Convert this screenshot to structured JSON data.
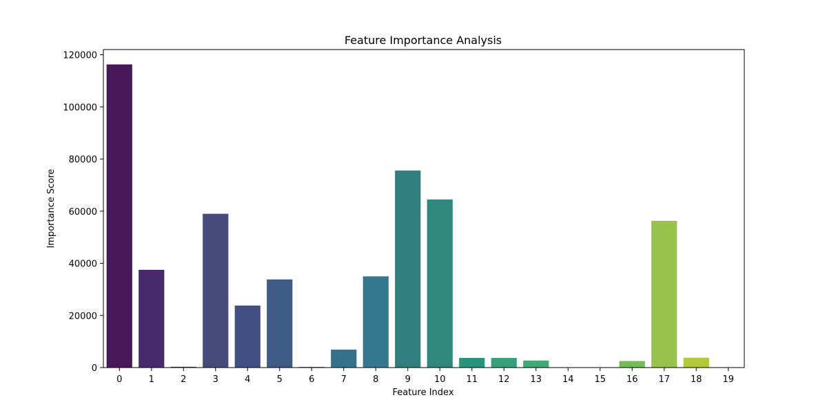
{
  "chart_data": {
    "type": "bar",
    "title": "Feature Importance Analysis",
    "xlabel": "Feature Index",
    "ylabel": "Importance Score",
    "categories": [
      "0",
      "1",
      "2",
      "3",
      "4",
      "5",
      "6",
      "7",
      "8",
      "9",
      "10",
      "11",
      "12",
      "13",
      "14",
      "15",
      "16",
      "17",
      "18",
      "19"
    ],
    "values": [
      116300,
      37500,
      300,
      59000,
      23800,
      33800,
      250,
      6900,
      35000,
      75600,
      64500,
      3700,
      3700,
      2700,
      100,
      100,
      2500,
      56300,
      3800,
      100
    ],
    "ylim": [
      0,
      122000
    ],
    "yticks": [
      0,
      20000,
      40000,
      60000,
      80000,
      100000,
      120000
    ],
    "ytick_labels": [
      "0",
      "20000",
      "40000",
      "60000",
      "80000",
      "100000",
      "120000"
    ],
    "grid": false,
    "colors": [
      "#46185a",
      "#482a6c",
      "#46337e",
      "#474a7a",
      "#414f82",
      "#3e5b88",
      "#3c6a8c",
      "#35718a",
      "#33788c",
      "#2f7f7f",
      "#2e887c",
      "#29947c",
      "#34a17a",
      "#3faa75",
      "#47af70",
      "#55b86c",
      "#71bf52",
      "#98c34a",
      "#b3c93a",
      "#c6d22b"
    ]
  }
}
